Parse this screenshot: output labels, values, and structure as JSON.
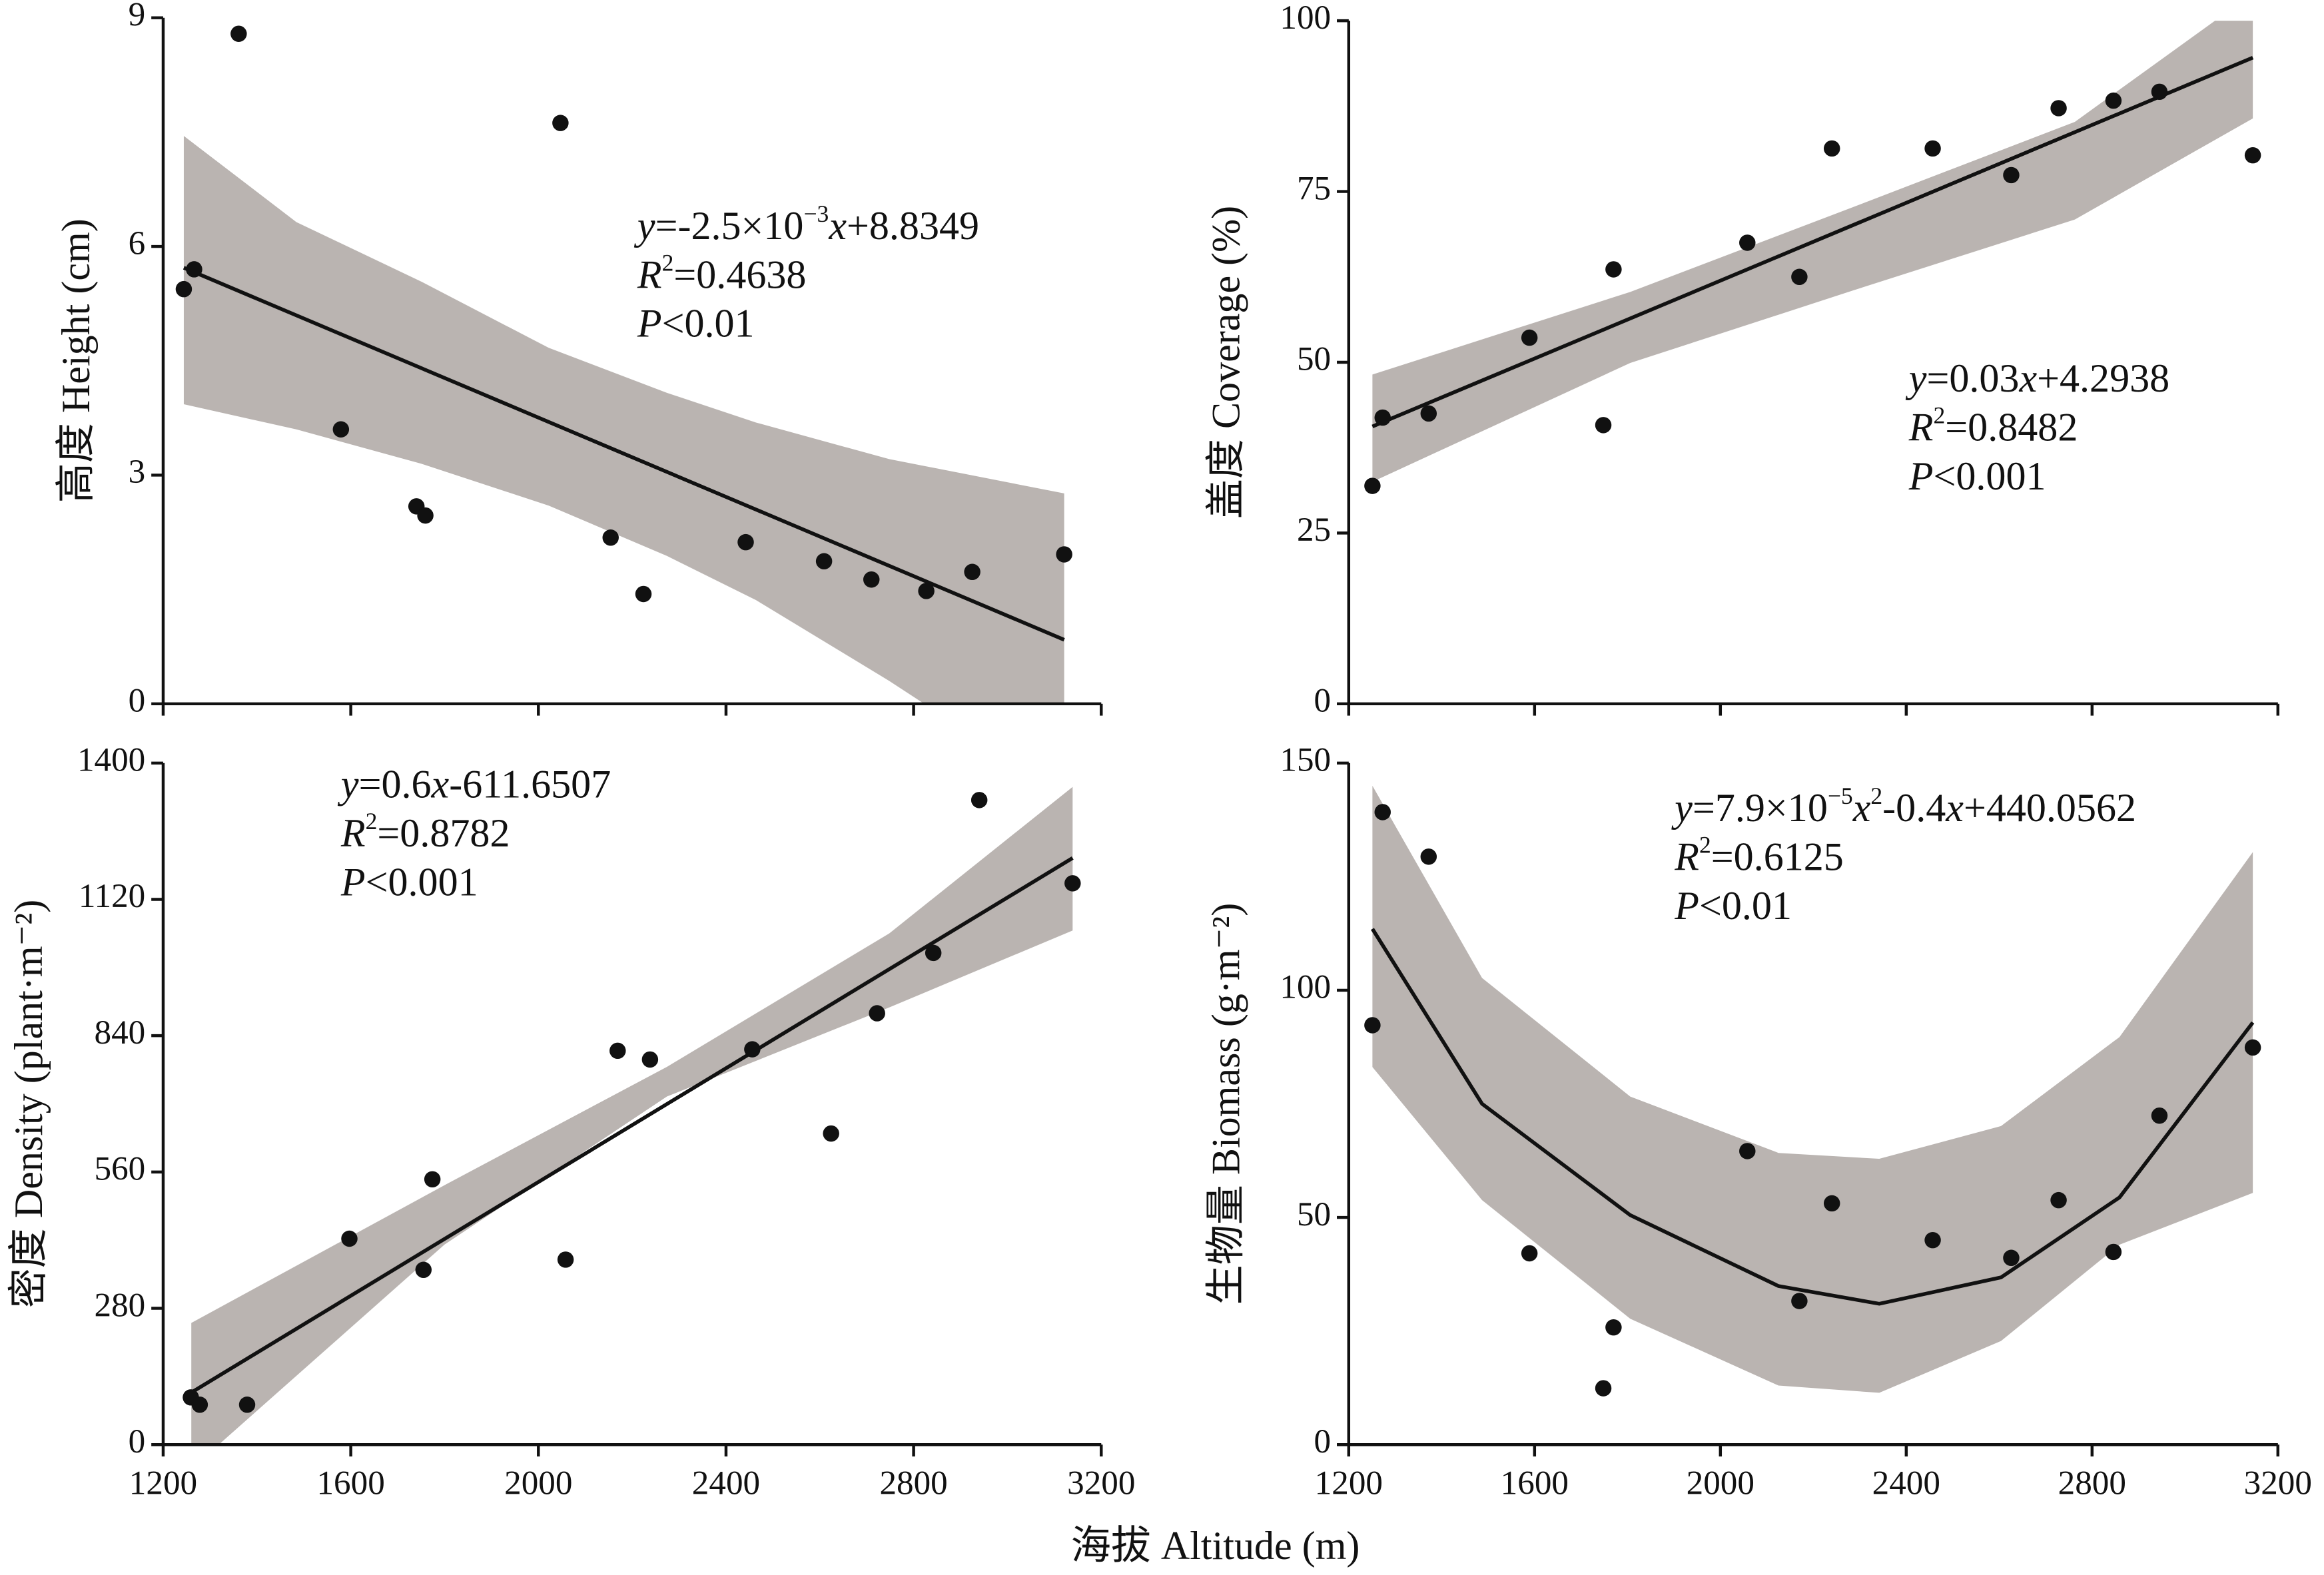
{
  "xlabel": "海拔 Altitude (m)",
  "chart_data": [
    {
      "type": "scatter",
      "ylabel": "高度 Height (cm)",
      "color": "#111111",
      "band_color": "#bab4b1",
      "xticklabels": false,
      "xlim": [
        1200,
        3200
      ],
      "xticks": [
        1200,
        1600,
        2000,
        2400,
        2800,
        3200
      ],
      "ylim": [
        0,
        9
      ],
      "yticks": [
        0,
        3,
        6,
        9
      ],
      "x": [
        1244,
        1266,
        1361,
        1579,
        1740,
        1759,
        2047,
        2154,
        2224,
        2442,
        2609,
        2710,
        2827,
        2925,
        3121
      ],
      "values": [
        5.44,
        5.7,
        8.79,
        3.6,
        2.59,
        2.47,
        7.62,
        2.18,
        1.44,
        2.12,
        1.87,
        1.63,
        1.48,
        1.73,
        1.96
      ],
      "fit": {
        "x": [
          1244,
          3121
        ],
        "y": [
          5.72,
          0.84
        ]
      },
      "band": {
        "x": [
          1244,
          1484,
          1750,
          2022,
          2274,
          2464,
          2748,
          3121
        ],
        "upper": [
          7.45,
          6.32,
          5.54,
          4.67,
          4.08,
          3.69,
          3.21,
          2.76
        ],
        "lower": [
          3.93,
          3.6,
          3.15,
          2.6,
          1.94,
          1.36,
          0.3,
          -1.2
        ]
      },
      "annotation": [
        [
          {
            "text": "y",
            "italic": true
          },
          {
            "text": "=-2.5×10"
          },
          {
            "text": "−3",
            "sup": true
          },
          {
            "text": "x",
            "italic": true
          },
          {
            "text": "+8.8349"
          }
        ],
        [
          {
            "text": "R",
            "italic": true
          },
          {
            "text": "2",
            "sup": true
          },
          {
            "text": "=0.4638"
          }
        ],
        [
          {
            "text": "P",
            "italic": true
          },
          {
            "text": "<0.01"
          }
        ]
      ]
    },
    {
      "type": "scatter",
      "ylabel": "盖度 Coverage (%)",
      "color": "#111111",
      "band_color": "#bab4b1",
      "xticklabels": false,
      "xlim": [
        1200,
        3200
      ],
      "xticks": [
        1200,
        1600,
        2000,
        2400,
        2800,
        3200
      ],
      "ylim": [
        0,
        100
      ],
      "yticks": [
        0,
        25,
        50,
        75,
        100
      ],
      "x": [
        1251,
        1273,
        1372,
        1589,
        1748,
        1770,
        2058,
        2170,
        2240,
        2457,
        2626,
        2728,
        2846,
        2945,
        3146
      ],
      "values": [
        31.9,
        41.9,
        42.5,
        53.6,
        40.8,
        63.6,
        67.5,
        62.5,
        81.3,
        81.3,
        77.4,
        87.2,
        88.3,
        89.6,
        80.3
      ],
      "fit": {
        "x": [
          1251,
          3146
        ],
        "y": [
          40.6,
          94.6
        ]
      },
      "band": {
        "x": [
          1251,
          1806,
          2285,
          2763,
          3146
        ],
        "upper": [
          48.2,
          60.3,
          72.7,
          85.2,
          104
        ],
        "lower": [
          32.5,
          49.9,
          60.5,
          70.9,
          85.7
        ]
      },
      "annotation": [
        [
          {
            "text": "y",
            "italic": true
          },
          {
            "text": "=0.03"
          },
          {
            "text": "x",
            "italic": true
          },
          {
            "text": "+4.2938"
          }
        ],
        [
          {
            "text": "R",
            "italic": true
          },
          {
            "text": "2",
            "sup": true
          },
          {
            "text": "=0.8482"
          }
        ],
        [
          {
            "text": "P",
            "italic": true
          },
          {
            "text": "<0.001"
          }
        ]
      ]
    },
    {
      "type": "scatter",
      "ylabel": "密度 Density (plant·m⁻²)",
      "color": "#111111",
      "band_color": "#bab4b1",
      "xticklabels": true,
      "xlim": [
        1200,
        3200
      ],
      "xticks": [
        1200,
        1600,
        2000,
        2400,
        2800,
        3200
      ],
      "ylim": [
        0,
        1400
      ],
      "yticks": [
        0,
        280,
        560,
        840,
        1120,
        1400
      ],
      "x": [
        1259,
        1278,
        1379,
        1597,
        1755,
        1774,
        2058,
        2169,
        2238,
        2456,
        2624,
        2722,
        2842,
        2940,
        3139
      ],
      "values": [
        97,
        82,
        82,
        423,
        359,
        545,
        380,
        809,
        791,
        812,
        639,
        886,
        1010,
        1324,
        1153
      ],
      "fit": {
        "x": [
          1260,
          3139
        ],
        "y": [
          107,
          1205
        ]
      },
      "band": {
        "x": [
          1260,
          1800,
          2274,
          2748,
          3139
        ],
        "upper": [
          250,
          533,
          776,
          1050,
          1351
        ],
        "lower": [
          -50,
          411,
          715,
          898,
          1056
        ]
      },
      "annotation": [
        [
          {
            "text": "y",
            "italic": true
          },
          {
            "text": "=0.6"
          },
          {
            "text": "x",
            "italic": true
          },
          {
            "text": "-611.6507"
          }
        ],
        [
          {
            "text": "R",
            "italic": true
          },
          {
            "text": "2",
            "sup": true
          },
          {
            "text": "=0.8782"
          }
        ],
        [
          {
            "text": "P",
            "italic": true
          },
          {
            "text": "<0.001"
          }
        ]
      ]
    },
    {
      "type": "scatter",
      "ylabel": "生物量 Biomass (g·m⁻²)",
      "color": "#111111",
      "band_color": "#bab4b1",
      "xticklabels": true,
      "xlim": [
        1200,
        3200
      ],
      "xticks": [
        1200,
        1600,
        2000,
        2400,
        2800,
        3200
      ],
      "ylim": [
        0,
        150
      ],
      "yticks": [
        0,
        50,
        100,
        150
      ],
      "x": [
        1251,
        1273,
        1372,
        1589,
        1748,
        1770,
        2058,
        2170,
        2240,
        2457,
        2626,
        2728,
        2846,
        2945,
        3146
      ],
      "values": [
        92.3,
        139.2,
        129.4,
        42.1,
        12.4,
        25.8,
        64.6,
        31.6,
        53.1,
        45.0,
        41.1,
        53.8,
        42.4,
        72.4,
        87.4
      ],
      "fit": {
        "x": [
          1251,
          1487,
          1806,
          2125,
          2342,
          2604,
          2859,
          3146
        ],
        "y": [
          113.5,
          75,
          50.5,
          34.9,
          31,
          36.8,
          54.4,
          92.9
        ]
      },
      "band": {
        "x": [
          1251,
          1487,
          1806,
          2125,
          2342,
          2604,
          2859,
          3146
        ],
        "upper": [
          145,
          102.7,
          76.6,
          64.2,
          62.9,
          70.1,
          89.7,
          130.4
        ],
        "lower": [
          83.1,
          53.8,
          27.7,
          13,
          11.4,
          22.8,
          44,
          55.4
        ]
      },
      "annotation": [
        [
          {
            "text": "y",
            "italic": true
          },
          {
            "text": "=7.9×10"
          },
          {
            "text": "−5",
            "sup": true
          },
          {
            "text": "x",
            "italic": true
          },
          {
            "text": "2",
            "sup": true
          },
          {
            "text": "-0.4"
          },
          {
            "text": "x",
            "italic": true
          },
          {
            "text": "+440.0562"
          }
        ],
        [
          {
            "text": "R",
            "italic": true
          },
          {
            "text": "2",
            "sup": true
          },
          {
            "text": "=0.6125"
          }
        ],
        [
          {
            "text": "P",
            "italic": true
          },
          {
            "text": "<0.01"
          }
        ]
      ]
    }
  ]
}
